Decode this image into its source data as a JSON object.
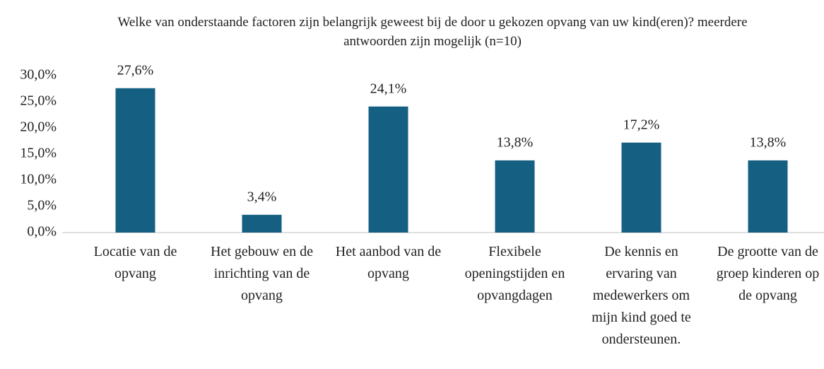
{
  "chart_data": {
    "type": "bar",
    "title": "Welke van onderstaande factoren zijn belangrijk geweest bij de door u gekozen opvang van uw kind(eren)? meerdere antwoorden zijn mogelijk (n=10)",
    "categories": [
      "Locatie van de opvang",
      "Het gebouw en de inrichting van de opvang",
      "Het aanbod van de opvang",
      "Flexibele openingstijden en opvangdagen",
      "De kennis en ervaring van medewerkers om mijn kind goed te ondersteunen.",
      "De grootte van de groep kinderen op de opvang"
    ],
    "values": [
      27.6,
      3.4,
      24.1,
      13.8,
      17.2,
      13.8
    ],
    "value_labels": [
      "27,6%",
      "3,4%",
      "24,1%",
      "13,8%",
      "17,2%",
      "13,8%"
    ],
    "color": "#156082",
    "ylim": [
      0,
      30
    ],
    "yticks": [
      {
        "value": 0,
        "label": "0,0%"
      },
      {
        "value": 5,
        "label": "5,0%"
      },
      {
        "value": 10,
        "label": "10,0%"
      },
      {
        "value": 15,
        "label": "15,0%"
      },
      {
        "value": 20,
        "label": "20,0%"
      },
      {
        "value": 25,
        "label": "25,0%"
      },
      {
        "value": 30,
        "label": "30,0%"
      }
    ],
    "grid": false
  }
}
